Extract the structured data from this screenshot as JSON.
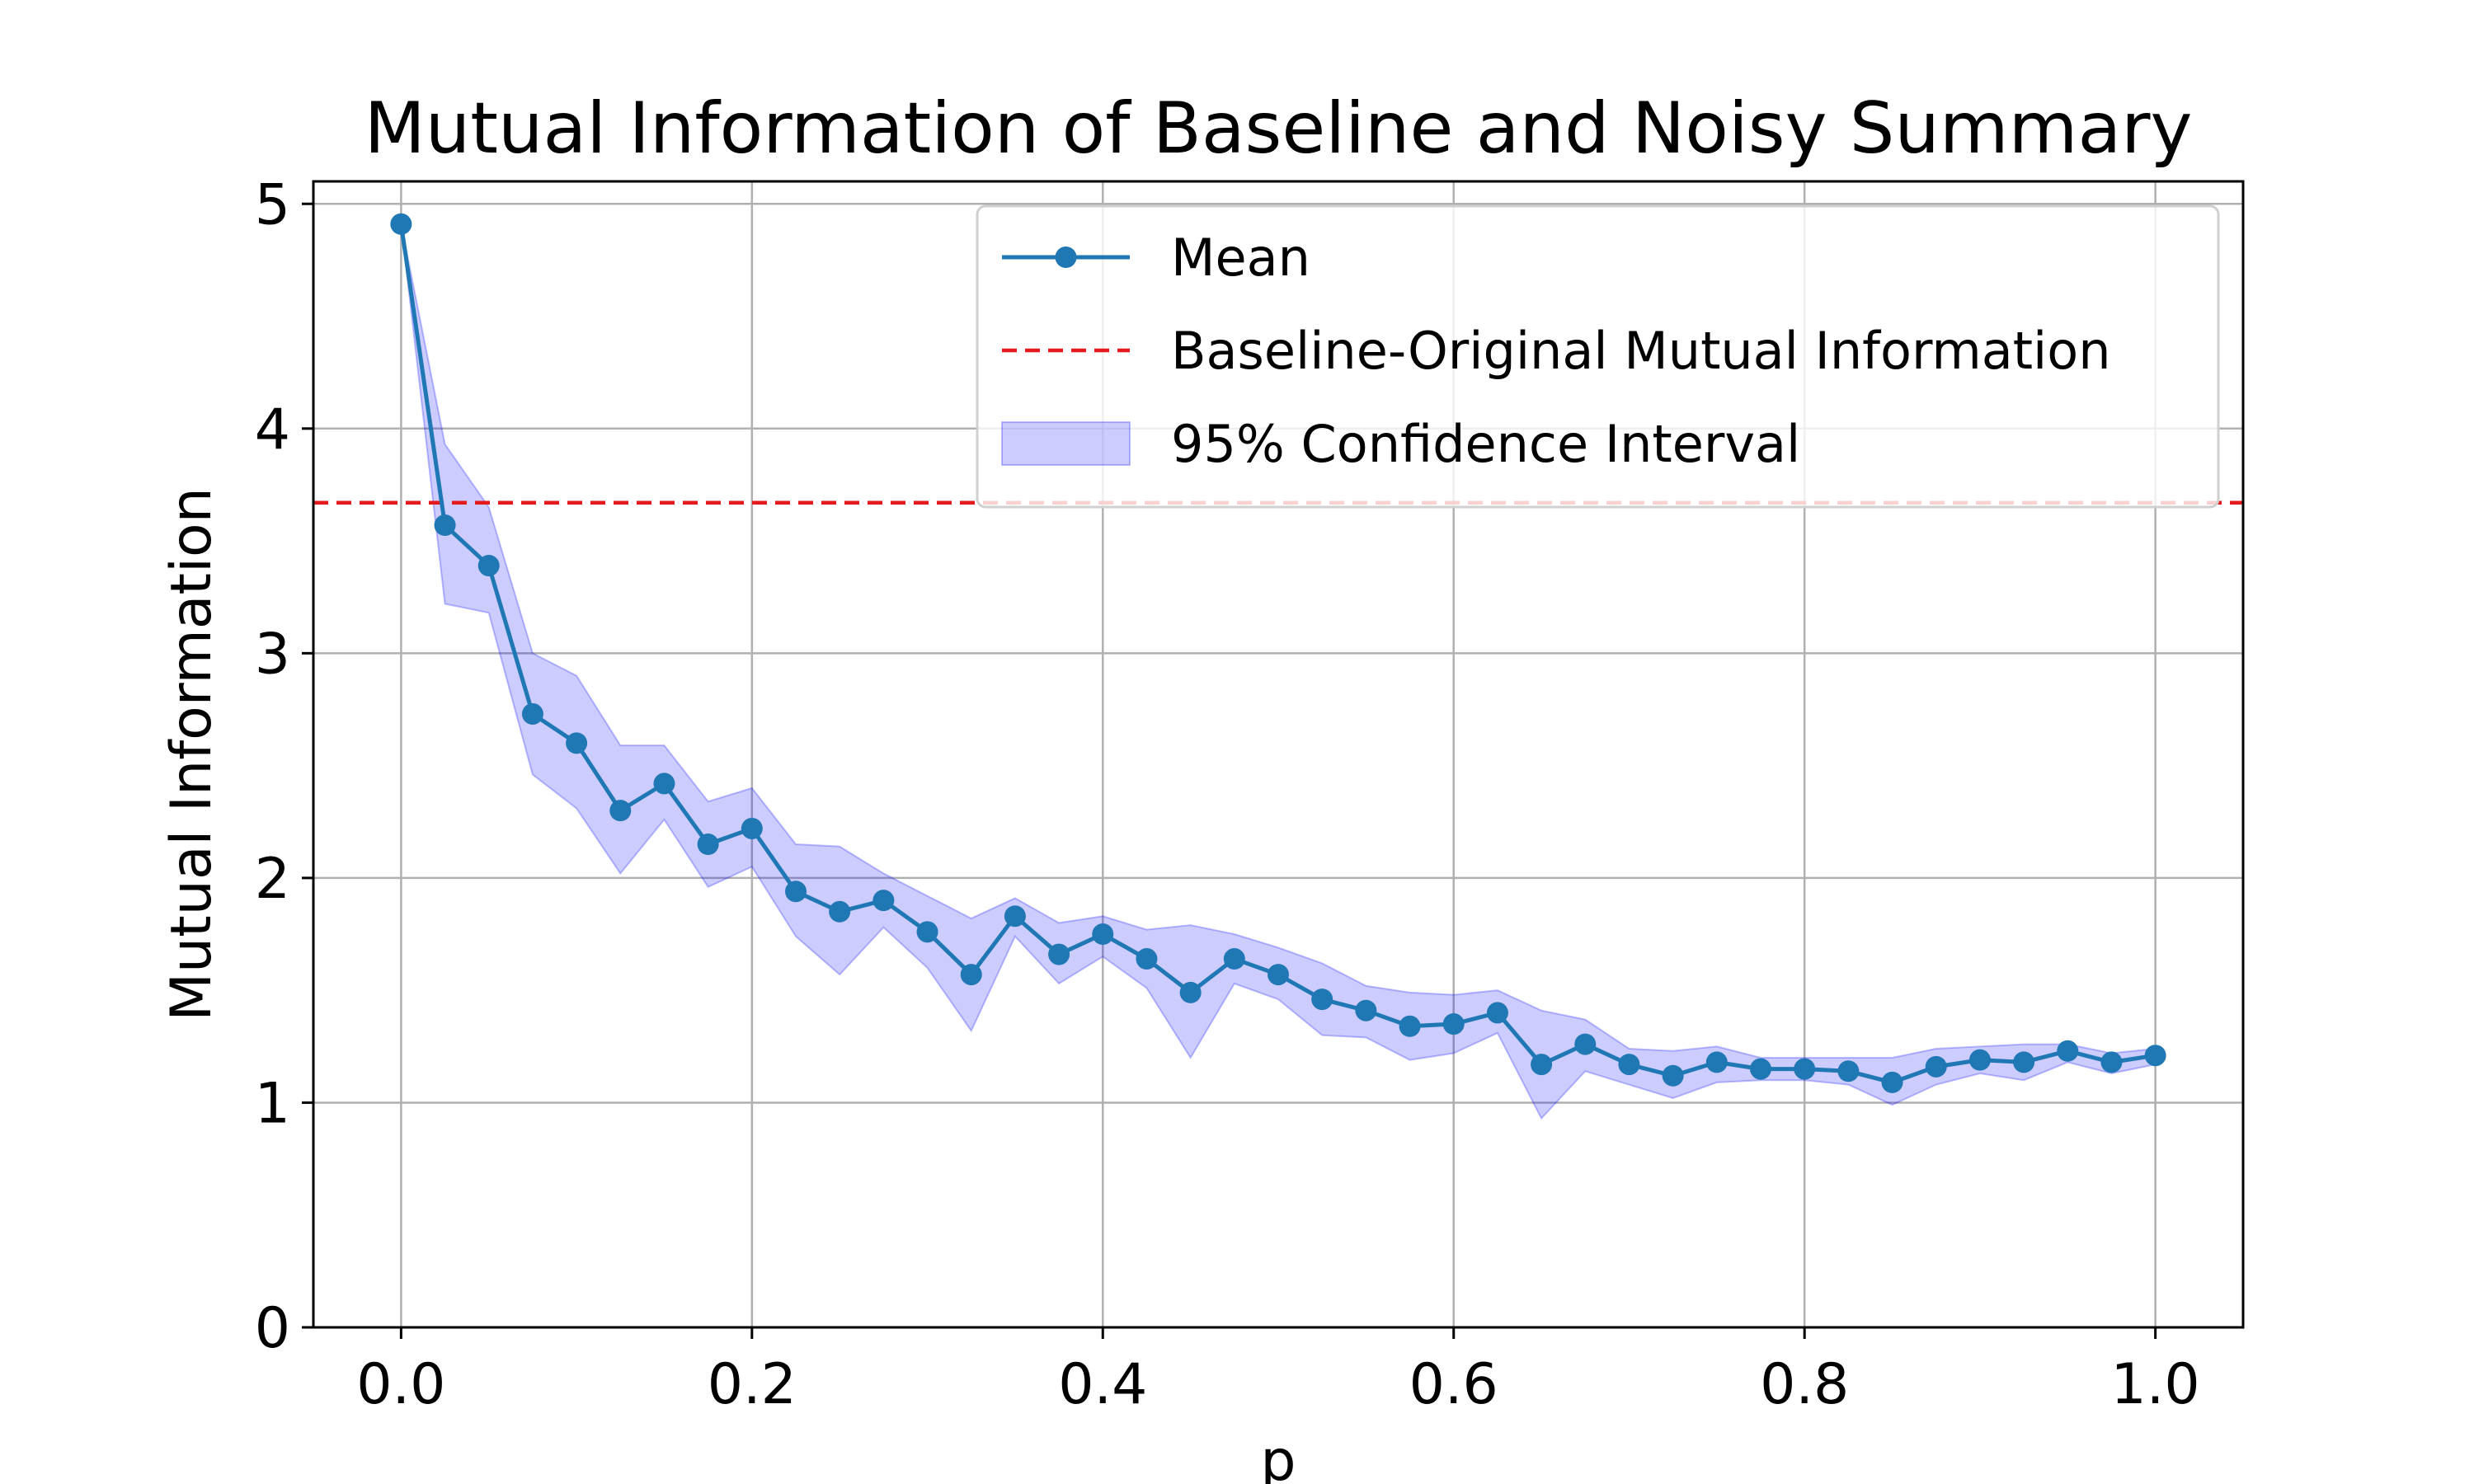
{
  "chart_data": {
    "type": "line",
    "title": "Mutual Information of Baseline and Noisy Summary",
    "xlabel": "p",
    "ylabel": "Mutual Information",
    "xlim": [
      -0.05,
      1.05
    ],
    "ylim": [
      0,
      5.1
    ],
    "xticks": [
      0.0,
      0.2,
      0.4,
      0.6,
      0.8,
      1.0
    ],
    "xtick_labels": [
      "0.0",
      "0.2",
      "0.4",
      "0.6",
      "0.8",
      "1.0"
    ],
    "yticks": [
      0,
      1,
      2,
      3,
      4,
      5
    ],
    "ytick_labels": [
      "0",
      "1",
      "2",
      "3",
      "4",
      "5"
    ],
    "grid": true,
    "legend_position": "top-right",
    "x": [
      0.0,
      0.025,
      0.05,
      0.075,
      0.1,
      0.125,
      0.15,
      0.175,
      0.2,
      0.225,
      0.25,
      0.275,
      0.3,
      0.325,
      0.35,
      0.375,
      0.4,
      0.425,
      0.45,
      0.475,
      0.5,
      0.525,
      0.55,
      0.575,
      0.6,
      0.625,
      0.65,
      0.675,
      0.7,
      0.725,
      0.75,
      0.775,
      0.8,
      0.825,
      0.85,
      0.875,
      0.9,
      0.925,
      0.95,
      0.975,
      1.0
    ],
    "series": [
      {
        "name": "Mean",
        "color": "#1f77b4",
        "values": [
          4.91,
          3.57,
          3.39,
          2.73,
          2.6,
          2.3,
          2.42,
          2.15,
          2.22,
          1.94,
          1.85,
          1.9,
          1.76,
          1.57,
          1.83,
          1.66,
          1.75,
          1.64,
          1.49,
          1.64,
          1.57,
          1.46,
          1.41,
          1.34,
          1.35,
          1.4,
          1.17,
          1.26,
          1.17,
          1.12,
          1.18,
          1.15,
          1.15,
          1.14,
          1.09,
          1.16,
          1.19,
          1.18,
          1.23,
          1.18,
          1.21
        ]
      },
      {
        "name": "95% Confidence Interval",
        "color": "#0000ff",
        "lower": [
          4.91,
          3.22,
          3.18,
          2.46,
          2.31,
          2.02,
          2.26,
          1.96,
          2.05,
          1.74,
          1.57,
          1.78,
          1.6,
          1.32,
          1.74,
          1.53,
          1.65,
          1.51,
          1.2,
          1.53,
          1.46,
          1.3,
          1.29,
          1.19,
          1.22,
          1.31,
          0.93,
          1.14,
          1.08,
          1.02,
          1.09,
          1.1,
          1.1,
          1.08,
          0.99,
          1.08,
          1.13,
          1.1,
          1.18,
          1.13,
          1.17
        ],
        "upper": [
          4.91,
          3.93,
          3.65,
          3.0,
          2.9,
          2.59,
          2.59,
          2.34,
          2.4,
          2.15,
          2.14,
          2.02,
          1.92,
          1.82,
          1.91,
          1.8,
          1.83,
          1.77,
          1.79,
          1.75,
          1.69,
          1.62,
          1.52,
          1.49,
          1.48,
          1.5,
          1.41,
          1.37,
          1.24,
          1.23,
          1.25,
          1.2,
          1.2,
          1.2,
          1.2,
          1.24,
          1.25,
          1.26,
          1.26,
          1.22,
          1.24
        ]
      },
      {
        "name": "Baseline-Original Mutual Information",
        "color": "#e41a1c",
        "hline": 3.67
      }
    ]
  }
}
